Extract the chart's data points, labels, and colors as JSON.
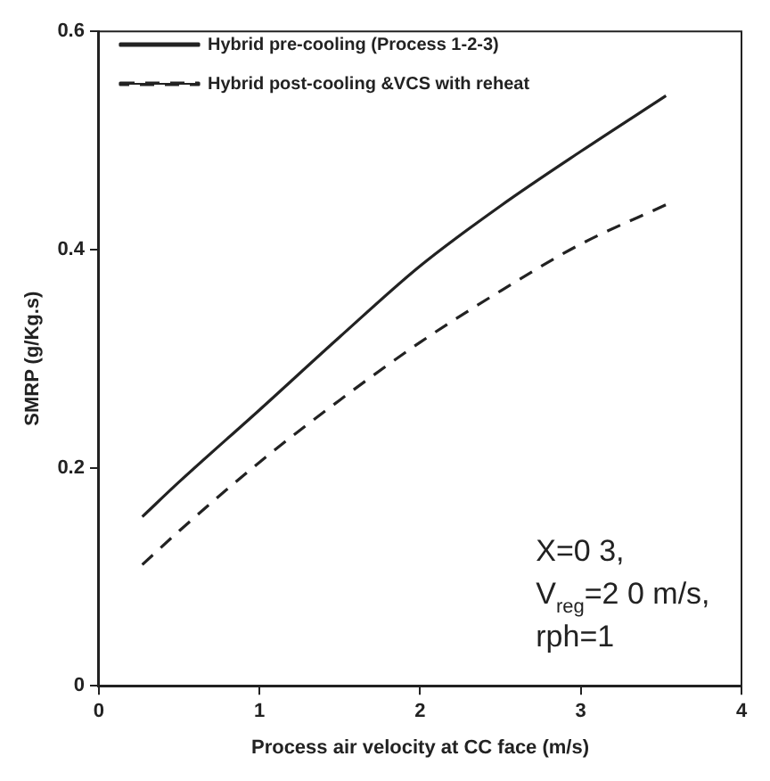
{
  "chart_data": {
    "type": "line",
    "xlabel": "Process air velocity at CC face (m/s)",
    "ylabel": "SMRP (g/Kg.s)",
    "xlim": [
      0,
      4
    ],
    "xticks": [
      0,
      1,
      2,
      3,
      4
    ],
    "ylim": [
      0,
      0.6
    ],
    "yticks": [
      0,
      0.2,
      0.4,
      0.6
    ],
    "grid": false,
    "legend": "top left",
    "marker": "none",
    "series": [
      {
        "name": "Hybrid pre-cooling (Process 1-2-3)",
        "color": "#222222",
        "line_style": "solid",
        "x": [
          0.27,
          0.5,
          1,
          1.5,
          2,
          2.5,
          3,
          3.53
        ],
        "values": [
          0.155,
          0.187,
          0.253,
          0.32,
          0.385,
          0.44,
          0.49,
          0.541
        ]
      },
      {
        "name": "Hybrid post-cooling &VCS with reheat",
        "color": "#222222",
        "line_style": "dashed",
        "x": [
          0.27,
          0.5,
          1,
          1.5,
          2,
          2.5,
          3,
          3.53
        ],
        "values": [
          0.111,
          0.142,
          0.205,
          0.262,
          0.315,
          0.362,
          0.405,
          0.441
        ]
      }
    ],
    "annotations": [
      "X=0 3,",
      "V$_{reg}$=2 0 m/s,",
      "rph=1"
    ]
  }
}
